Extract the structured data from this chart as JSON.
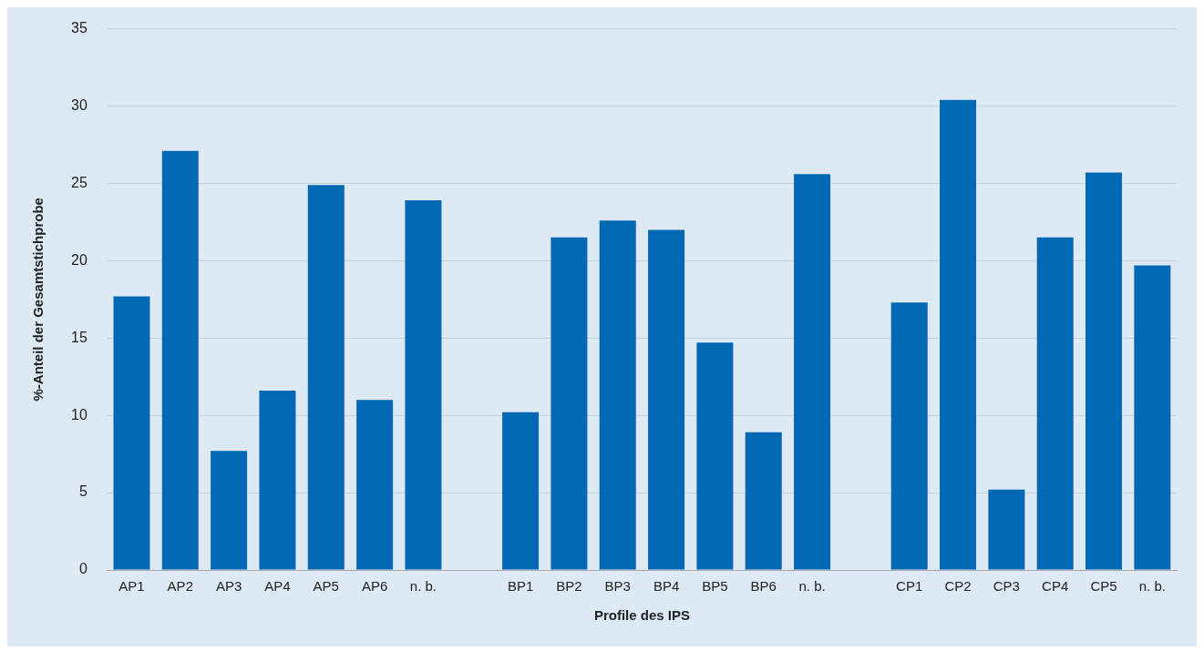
{
  "chart_data": {
    "type": "bar",
    "xlabel": "Profile des IPS",
    "ylabel": "%-Anteil der Gesamtstichprobe",
    "categories": [
      "AP1",
      "AP2",
      "AP3",
      "AP4",
      "AP5",
      "AP6",
      "n. b.",
      null,
      "BP1",
      "BP2",
      "BP3",
      "BP4",
      "BP5",
      "BP6",
      "n. b.",
      null,
      "CP1",
      "CP2",
      "CP3",
      "CP4",
      "CP5",
      "n. b."
    ],
    "values": [
      17.7,
      27.1,
      7.7,
      11.6,
      24.9,
      11.0,
      23.9,
      null,
      10.2,
      21.5,
      22.6,
      22.0,
      14.7,
      8.9,
      25.6,
      null,
      17.3,
      30.4,
      5.2,
      21.5,
      25.7,
      19.7
    ],
    "color": "#0168b3",
    "ylim": [
      0,
      35
    ],
    "yticks": [
      0,
      5,
      10,
      15,
      20,
      25,
      30,
      35
    ],
    "grid": "y",
    "legend": false
  }
}
